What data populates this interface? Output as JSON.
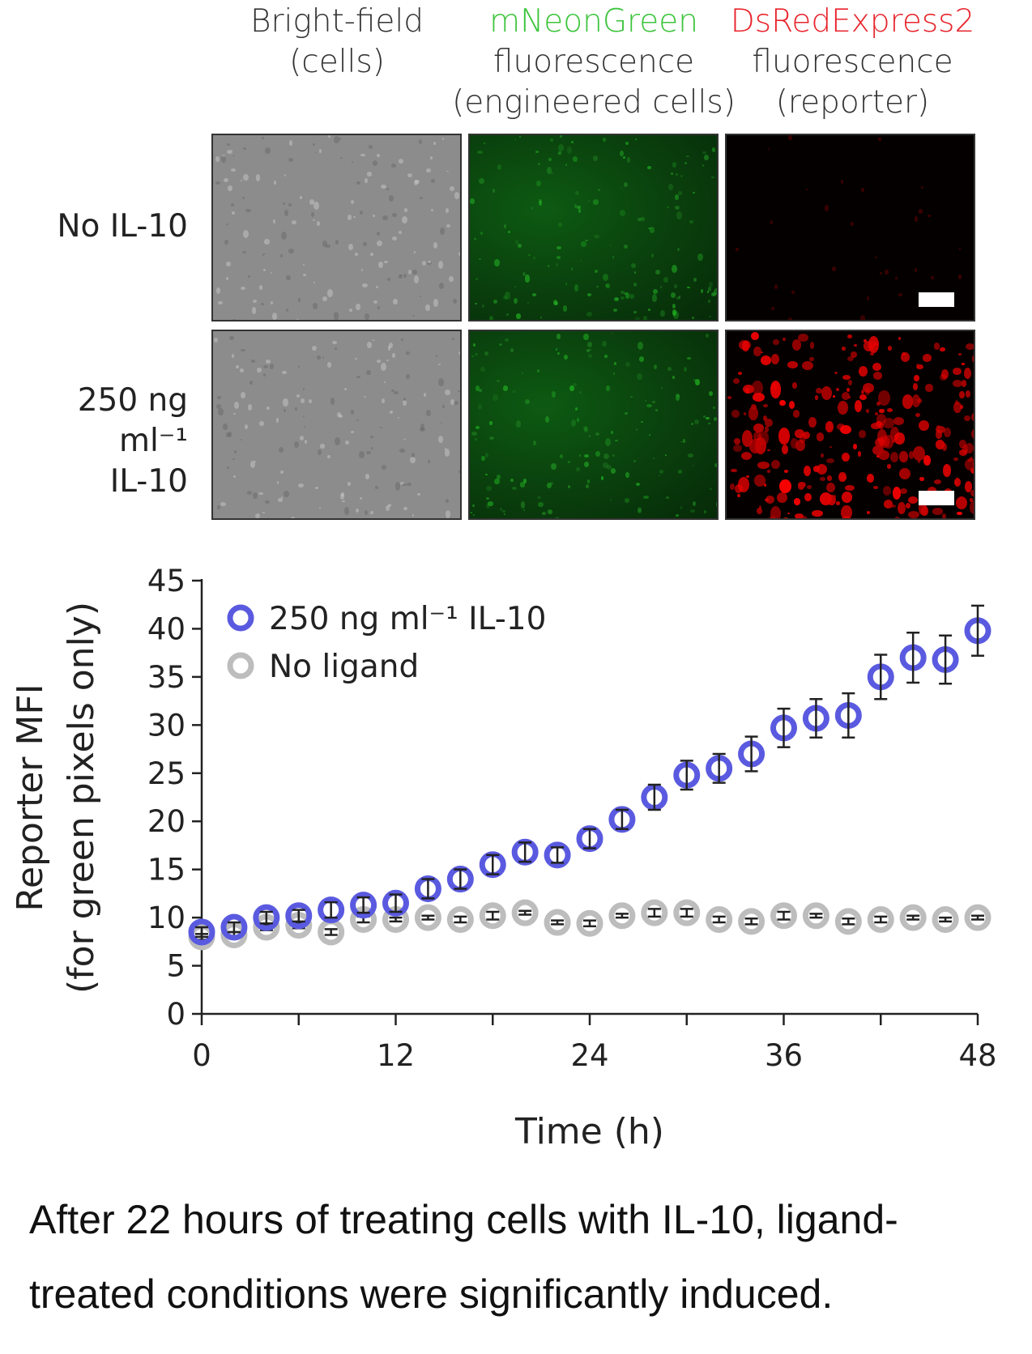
{
  "figure": {
    "columns": [
      {
        "line1": "Bright-field",
        "line2": "(cells)",
        "line3": "",
        "color": "#333333"
      },
      {
        "line1": "mNeonGreen",
        "line2": "fluorescence",
        "line3": "(engineered cells)",
        "color": "#3cc43c"
      },
      {
        "line1": "DsRedExpress2",
        "line2": "fluorescence",
        "line3": "(reporter)",
        "color": "#e8242c"
      }
    ],
    "rows": [
      {
        "line1": "No IL-10",
        "line2": ""
      },
      {
        "line1": "250 ng ml⁻¹",
        "line2": "IL-10"
      }
    ]
  },
  "chart_data": {
    "type": "scatter",
    "xlabel": "Time (h)",
    "ylabel": "Reporter MFI",
    "ylabel2": "(for green pixels only)",
    "xlim": [
      0,
      48
    ],
    "ylim": [
      0,
      45
    ],
    "xticks": [
      0,
      12,
      24,
      36,
      48
    ],
    "yticks": [
      0,
      5,
      10,
      15,
      20,
      25,
      30,
      35,
      40,
      45
    ],
    "grid": false,
    "legend_position": "top-left",
    "x": [
      0,
      2,
      4,
      6,
      8,
      10,
      12,
      14,
      16,
      18,
      20,
      22,
      24,
      26,
      28,
      30,
      32,
      34,
      36,
      38,
      40,
      42,
      44,
      46,
      48
    ],
    "series": [
      {
        "name": "250 ng ml⁻¹ IL-10",
        "color": "#5a5ae0",
        "values": [
          8.5,
          9,
          10,
          10.2,
          10.8,
          11.3,
          11.5,
          13,
          14,
          15.5,
          16.8,
          16.5,
          18.2,
          20.2,
          22.5,
          24.8,
          25.5,
          27,
          29.7,
          30.7,
          31,
          35,
          37,
          36.8,
          39.8
        ],
        "errors": [
          0.5,
          0.5,
          0.6,
          0.6,
          0.8,
          0.8,
          0.9,
          1,
          1,
          1,
          1,
          0.8,
          1,
          1,
          1.3,
          1.5,
          1.5,
          1.8,
          2,
          2,
          2.3,
          2.3,
          2.6,
          2.5,
          2.6
        ]
      },
      {
        "name": "No ligand",
        "color": "#bdbdbd",
        "values": [
          8,
          8.2,
          9,
          9.2,
          8.5,
          9.8,
          9.8,
          10,
          9.8,
          10.2,
          10.5,
          9.5,
          9.4,
          10.2,
          10.5,
          10.5,
          9.8,
          9.6,
          10.2,
          10.2,
          9.6,
          9.8,
          10,
          9.8,
          10
        ],
        "errors": [
          0.3,
          0.3,
          0.3,
          0.3,
          0.3,
          0.3,
          0.2,
          0.2,
          0.3,
          0.4,
          0.2,
          0.2,
          0.3,
          0.2,
          0.4,
          0.4,
          0.3,
          0.3,
          0.4,
          0.2,
          0.3,
          0.3,
          0.2,
          0.2,
          0.2
        ]
      }
    ]
  },
  "caption": "After 22 hours of treating cells with IL-10, ligand-treated conditions were significantly induced."
}
